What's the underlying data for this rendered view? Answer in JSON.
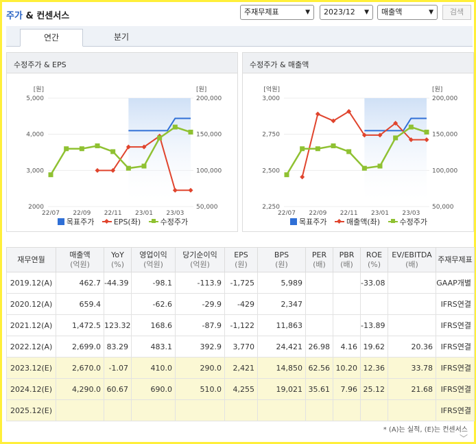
{
  "header": {
    "title_accent": "주가",
    "title_rest": "& 컨센서스",
    "select_type": "주재무제표",
    "select_period": "2023/12",
    "select_metric": "매출액",
    "search_label": "검색"
  },
  "tabs": [
    {
      "label": "연간",
      "active": true
    },
    {
      "label": "분기",
      "active": false
    }
  ],
  "charts": [
    {
      "title": "수정주가 & EPS",
      "left_unit": "[원]",
      "right_unit": "[원]",
      "left_ticks": [
        "5,000",
        "4,000",
        "3,000",
        "2000"
      ],
      "right_ticks": [
        "200,000",
        "150,000",
        "100,000",
        "50,000"
      ],
      "x_ticks": [
        "22/07",
        "22/09",
        "22/11",
        "23/01",
        "23/03"
      ],
      "legend": [
        "목표주가",
        "EPS(좌)",
        "수정주가"
      ]
    },
    {
      "title": "수정주가 & 매출액",
      "left_unit": "[억원]",
      "right_unit": "[원]",
      "left_ticks": [
        "3,000",
        "2,750",
        "2,500",
        "2,250"
      ],
      "right_ticks": [
        "200,000",
        "150,000",
        "100,000",
        "50,000"
      ],
      "x_ticks": [
        "22/07",
        "22/09",
        "22/11",
        "23/01",
        "23/03"
      ],
      "legend": [
        "목표주가",
        "매출액(좌)",
        "수정주가"
      ]
    }
  ],
  "chart_data": [
    {
      "type": "line",
      "title": "수정주가 & EPS",
      "x": [
        "22/07",
        "22/08",
        "22/09",
        "22/10",
        "22/11",
        "22/12",
        "23/01",
        "23/02",
        "23/03",
        "23/04"
      ],
      "left_ylim": [
        2000,
        5000
      ],
      "right_ylim": [
        50000,
        200000
      ],
      "series": [
        {
          "name": "목표주가",
          "axis": "right",
          "color": "#2f6fd6",
          "values": [
            null,
            null,
            null,
            null,
            null,
            155000,
            155000,
            155000,
            172000,
            172000
          ]
        },
        {
          "name": "EPS(좌)",
          "axis": "left",
          "color": "#e0442d",
          "values": [
            null,
            null,
            null,
            3000,
            3000,
            3650,
            3650,
            3950,
            2450,
            2450
          ]
        },
        {
          "name": "수정주가",
          "axis": "right",
          "color": "#8fc132",
          "values": [
            94000,
            130000,
            130000,
            134000,
            126000,
            103000,
            106000,
            145000,
            160000,
            153000
          ]
        }
      ]
    },
    {
      "type": "line",
      "title": "수정주가 & 매출액",
      "x": [
        "22/07",
        "22/08",
        "22/09",
        "22/10",
        "22/11",
        "22/12",
        "23/01",
        "23/02",
        "23/03",
        "23/04"
      ],
      "left_ylim": [
        2250,
        3000
      ],
      "right_ylim": [
        50000,
        200000
      ],
      "series": [
        {
          "name": "목표주가",
          "axis": "right",
          "color": "#2f6fd6",
          "values": [
            null,
            null,
            null,
            null,
            null,
            155000,
            155000,
            155000,
            172000,
            172000
          ]
        },
        {
          "name": "매출액(좌)",
          "axis": "left",
          "color": "#e0442d",
          "values": [
            null,
            2455,
            2890,
            2843,
            2908,
            2744,
            2744,
            2827,
            2712,
            2712
          ]
        },
        {
          "name": "수정주가",
          "axis": "right",
          "color": "#8fc132",
          "values": [
            94000,
            130000,
            130000,
            134000,
            126000,
            103000,
            106000,
            145000,
            160000,
            153000
          ]
        }
      ]
    }
  ],
  "table": {
    "headers": [
      {
        "top": "재무연월",
        "sub": ""
      },
      {
        "top": "매출액",
        "sub": "(억원)"
      },
      {
        "top": "YoY",
        "sub": "(%)"
      },
      {
        "top": "영업이익",
        "sub": "(억원)"
      },
      {
        "top": "당기순이익",
        "sub": "(억원)"
      },
      {
        "top": "EPS",
        "sub": "(원)"
      },
      {
        "top": "BPS",
        "sub": "(원)"
      },
      {
        "top": "PER",
        "sub": "(배)"
      },
      {
        "top": "PBR",
        "sub": "(배)"
      },
      {
        "top": "ROE",
        "sub": "(%)"
      },
      {
        "top": "EV/EBITDA",
        "sub": "(배)"
      },
      {
        "top": "주재무제표",
        "sub": ""
      }
    ],
    "rows": [
      {
        "estimate": false,
        "cells": [
          "2019.12(A)",
          "462.7",
          "-44.39",
          "-98.1",
          "-113.9",
          "-1,725",
          "5,989",
          "",
          "",
          "-33.08",
          "",
          "GAAP개별"
        ]
      },
      {
        "estimate": false,
        "cells": [
          "2020.12(A)",
          "659.4",
          "",
          "-62.6",
          "-29.9",
          "-429",
          "2,347",
          "",
          "",
          "",
          "",
          "IFRS연결"
        ]
      },
      {
        "estimate": false,
        "cells": [
          "2021.12(A)",
          "1,472.5",
          "123.32",
          "168.6",
          "-87.9",
          "-1,122",
          "11,863",
          "",
          "",
          "-13.89",
          "",
          "IFRS연결"
        ]
      },
      {
        "estimate": false,
        "cells": [
          "2022.12(A)",
          "2,699.0",
          "83.29",
          "483.1",
          "392.9",
          "3,770",
          "24,421",
          "26.98",
          "4.16",
          "19.62",
          "20.36",
          "IFRS연결"
        ]
      },
      {
        "estimate": true,
        "cells": [
          "2023.12(E)",
          "2,670.0",
          "-1.07",
          "410.0",
          "290.0",
          "2,421",
          "14,850",
          "62.56",
          "10.20",
          "12.36",
          "33.78",
          "IFRS연결"
        ]
      },
      {
        "estimate": true,
        "cells": [
          "2024.12(E)",
          "4,290.0",
          "60.67",
          "690.0",
          "510.0",
          "4,255",
          "19,021",
          "35.61",
          "7.96",
          "25.12",
          "21.68",
          "IFRS연결"
        ]
      },
      {
        "estimate": true,
        "cells": [
          "2025.12(E)",
          "",
          "",
          "",
          "",
          "",
          "",
          "",
          "",
          "",
          "",
          "IFRS연결"
        ]
      }
    ]
  },
  "footnote": "* (A)는 실적, (E)는 컨센서스",
  "colors": {
    "frame": "#ffef3a",
    "accent": "#2a64c5",
    "estimate_row": "#fbf8d4"
  }
}
